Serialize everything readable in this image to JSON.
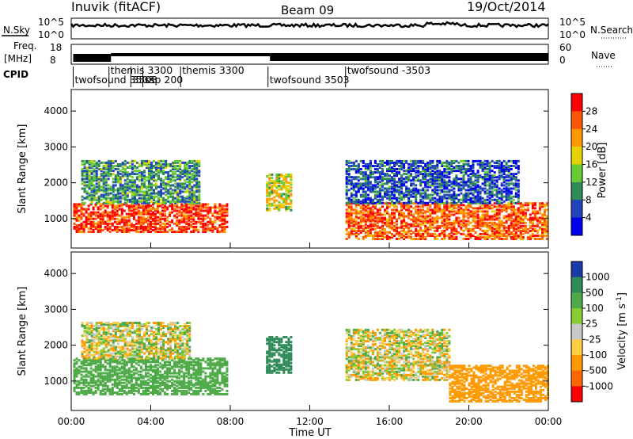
{
  "header": {
    "site": "Inuvik  (fitACF)",
    "beam": "Beam 09",
    "date": "19/Oct/2014"
  },
  "strips": {
    "nsky_label": "N.Sky",
    "nsearch_label": "N.Search",
    "nsky_ticks": [
      "10^5",
      "10^0"
    ],
    "nsky_right_ticks": [
      "10^5",
      "10^0"
    ],
    "freq_label_1": "Freq.",
    "freq_label_2": "[MHz]",
    "freq_ticks": [
      "18",
      "8"
    ],
    "nave_ticks": [
      "60",
      "0"
    ],
    "nave_label": "Nave",
    "cpid_label": "CPID",
    "cpid_segments": [
      {
        "label": "twofsound 3503",
        "start": 0.1,
        "end": 1.9,
        "row": 2
      },
      {
        "label": "themis 3300",
        "start": 1.9,
        "end": 3.0,
        "row": 1
      },
      {
        "label": "3503",
        "start": 3.0,
        "end": 3.6,
        "row": 2
      },
      {
        "label": "ssp 200",
        "start": 3.6,
        "end": 5.5,
        "row": 2
      },
      {
        "label": "themis 3300",
        "start": 5.5,
        "end": 9.9,
        "row": 1
      },
      {
        "label": "twofsound 3503",
        "start": 9.9,
        "end": 13.8,
        "row": 2
      },
      {
        "label": "twofsound -3503",
        "start": 13.8,
        "end": 24.0,
        "row": 1
      }
    ]
  },
  "axes": {
    "ylabel": "Slant Range [km]",
    "xlabel": "Time UT",
    "x_ticks": [
      "00:00",
      "04:00",
      "08:00",
      "12:00",
      "16:00",
      "20:00",
      "00:00"
    ],
    "y_ticks": [
      "1000",
      "2000",
      "3000",
      "4000"
    ]
  },
  "power_scale": {
    "label": "Power [dB]",
    "ticks": [
      "28",
      "24",
      "20",
      "16",
      "12",
      "8",
      "4"
    ],
    "colors": [
      "#0000ee",
      "#2244bb",
      "#2e8b57",
      "#66cc33",
      "#e6d200",
      "#ff9900",
      "#ff5500",
      "#ff0000"
    ]
  },
  "velocity_scale": {
    "label": "Velocity  [m s",
    "label_sup": "-1",
    "label_end": "]",
    "ticks": [
      "1000",
      "500",
      "100",
      "25",
      "-25",
      "-100",
      "-500",
      "-1000"
    ],
    "colors": [
      "#1a3aa8",
      "#2e8b57",
      "#4daa46",
      "#88cc33",
      "#c8c8c8",
      "#ffcc44",
      "#ff9900",
      "#ff6600",
      "#ff0000"
    ]
  },
  "chart_data": {
    "type": "heatmap",
    "title": "Inuvik  (fitACF)  Beam 09  19/Oct/2014",
    "xlabel": "Time UT",
    "ylabel": "Slant Range [km]",
    "xlim_hours": [
      0,
      24
    ],
    "ylim_km": [
      180,
      4600
    ],
    "panels": [
      {
        "name": "Power [dB]",
        "zlim": [
          0,
          30
        ],
        "echo_regions": [
          {
            "t0": 0.1,
            "t1": 7.8,
            "r0": 600,
            "r1": 1400,
            "value": 26
          },
          {
            "t0": 0.5,
            "t1": 6.5,
            "r0": 1400,
            "r1": 2600,
            "value": 10
          },
          {
            "t0": 9.8,
            "t1": 11.1,
            "r0": 1200,
            "r1": 2200,
            "value": 16
          },
          {
            "t0": 13.8,
            "t1": 24.0,
            "r0": 400,
            "r1": 1400,
            "value": 24
          },
          {
            "t0": 13.8,
            "t1": 22.5,
            "r0": 1400,
            "r1": 2600,
            "value": 6
          }
        ]
      },
      {
        "name": "Velocity [m s-1]",
        "zlim": [
          -1000,
          1000
        ],
        "echo_regions": [
          {
            "t0": 0.1,
            "t1": 7.8,
            "r0": 600,
            "r1": 1600,
            "value": 300
          },
          {
            "t0": 0.5,
            "t1": 6.0,
            "r0": 1600,
            "r1": 2600,
            "value": 0
          },
          {
            "t0": 9.8,
            "t1": 11.1,
            "r0": 1200,
            "r1": 2200,
            "value": 800
          },
          {
            "t0": 13.8,
            "t1": 19.0,
            "r0": 1000,
            "r1": 2400,
            "value": -20
          },
          {
            "t0": 19.0,
            "t1": 24.0,
            "r0": 400,
            "r1": 1400,
            "value": -300
          }
        ]
      }
    ]
  }
}
